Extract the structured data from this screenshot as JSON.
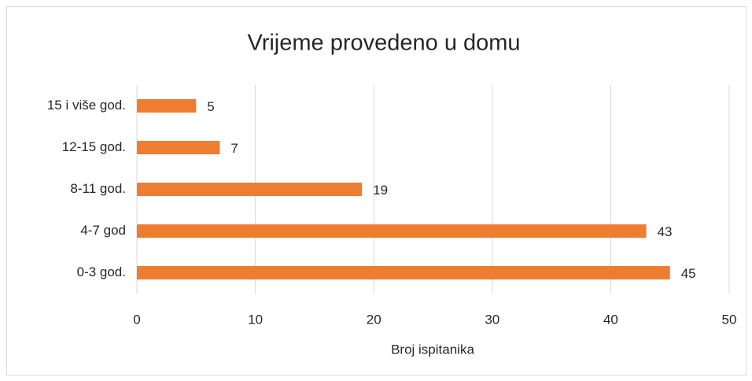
{
  "chart_data": {
    "type": "bar",
    "orientation": "horizontal",
    "title": "Vrijeme provedeno u domu",
    "x_label": "Broj ispitanika",
    "categories": [
      "15 i više god.",
      "12-15 god.",
      "8-11 god.",
      "4-7 god",
      "0-3 god."
    ],
    "values": [
      5,
      7,
      19,
      43,
      45
    ],
    "color": "#ed7d31",
    "xlim": [
      0,
      50
    ],
    "xticks": [
      0,
      10,
      20,
      30,
      40,
      50
    ],
    "grid": true
  }
}
